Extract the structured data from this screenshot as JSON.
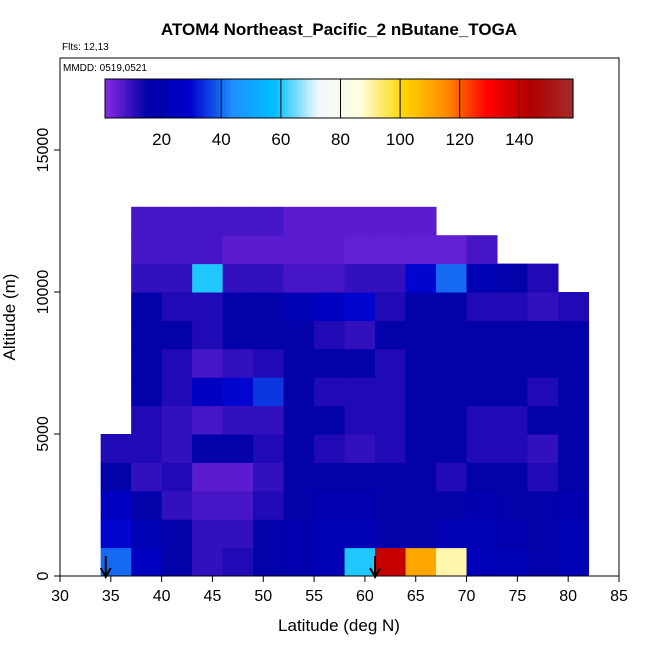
{
  "chart_data": {
    "type": "heatmap",
    "title": "ATOM4 Northeast_Pacific_2 nButane_TOGA",
    "subtitle": "Flts: 12,13",
    "annotation": "MMDD: 0519,0521",
    "x_label": "Latitude (deg N)",
    "y_label": "Altitude (m)",
    "xlim": [
      30,
      85
    ],
    "xticks": [
      30,
      35,
      40,
      45,
      50,
      55,
      60,
      65,
      70,
      75,
      80,
      85
    ],
    "ylim": [
      0,
      18240
    ],
    "yticks": [
      0,
      5000,
      10000,
      15000
    ],
    "xbins": [
      34,
      37,
      40,
      43,
      46,
      49,
      52,
      55,
      58,
      61,
      64,
      67,
      70,
      73,
      76,
      79,
      82
    ],
    "ybins": [
      0,
      1000,
      2000,
      3000,
      4000,
      5000,
      6000,
      7000,
      8000,
      9000,
      10000,
      11000,
      12000,
      13000
    ],
    "values": [
      [
        40,
        25,
        15,
        10,
        12,
        15,
        18,
        20,
        60,
        140,
        110,
        90,
        22,
        20,
        15,
        20
      ],
      [
        30,
        20,
        15,
        10,
        10,
        15,
        18,
        20,
        20,
        15,
        15,
        20,
        20,
        18,
        15,
        20
      ],
      [
        25,
        15,
        10,
        8,
        8,
        12,
        15,
        18,
        18,
        15,
        15,
        15,
        18,
        15,
        15,
        18
      ],
      [
        15,
        10,
        12,
        6,
        6,
        10,
        15,
        15,
        15,
        15,
        15,
        12,
        15,
        15,
        12,
        15
      ],
      [
        12,
        12,
        10,
        15,
        15,
        12,
        15,
        12,
        10,
        12,
        15,
        15,
        12,
        12,
        10,
        15
      ],
      [
        null,
        12,
        10,
        8,
        10,
        10,
        15,
        15,
        12,
        12,
        15,
        15,
        12,
        12,
        15,
        15
      ],
      [
        null,
        15,
        12,
        25,
        30,
        35,
        15,
        12,
        12,
        12,
        15,
        15,
        15,
        15,
        12,
        15
      ],
      [
        null,
        15,
        12,
        8,
        10,
        12,
        15,
        15,
        15,
        12,
        15,
        15,
        15,
        15,
        15,
        15
      ],
      [
        null,
        15,
        15,
        12,
        15,
        15,
        15,
        12,
        10,
        15,
        15,
        15,
        15,
        15,
        15,
        15
      ],
      [
        null,
        15,
        12,
        12,
        15,
        15,
        20,
        25,
        30,
        12,
        15,
        15,
        12,
        12,
        10,
        12
      ],
      [
        null,
        10,
        10,
        60,
        10,
        10,
        8,
        8,
        10,
        10,
        30,
        40,
        20,
        15,
        12,
        null
      ],
      [
        null,
        8,
        8,
        8,
        6,
        6,
        6,
        6,
        5,
        5,
        5,
        5,
        8,
        null,
        null,
        null
      ],
      [
        null,
        8,
        8,
        8,
        8,
        8,
        6,
        6,
        6,
        6,
        6,
        null,
        null,
        null,
        null,
        null
      ]
    ],
    "arrows_x": [
      34.5,
      61
    ],
    "colorbar": {
      "lim": [
        1,
        158
      ],
      "ticks": [
        20,
        40,
        60,
        80,
        100,
        120,
        140
      ],
      "colors": [
        "#8a2be2",
        "#0000a8",
        "#0000cd",
        "#1e90ff",
        "#00bfff",
        "#f0f8ff",
        "#ffffe0",
        "#ffd700",
        "#ff8c00",
        "#ff0000",
        "#b00000",
        "#a52a2a"
      ]
    }
  }
}
